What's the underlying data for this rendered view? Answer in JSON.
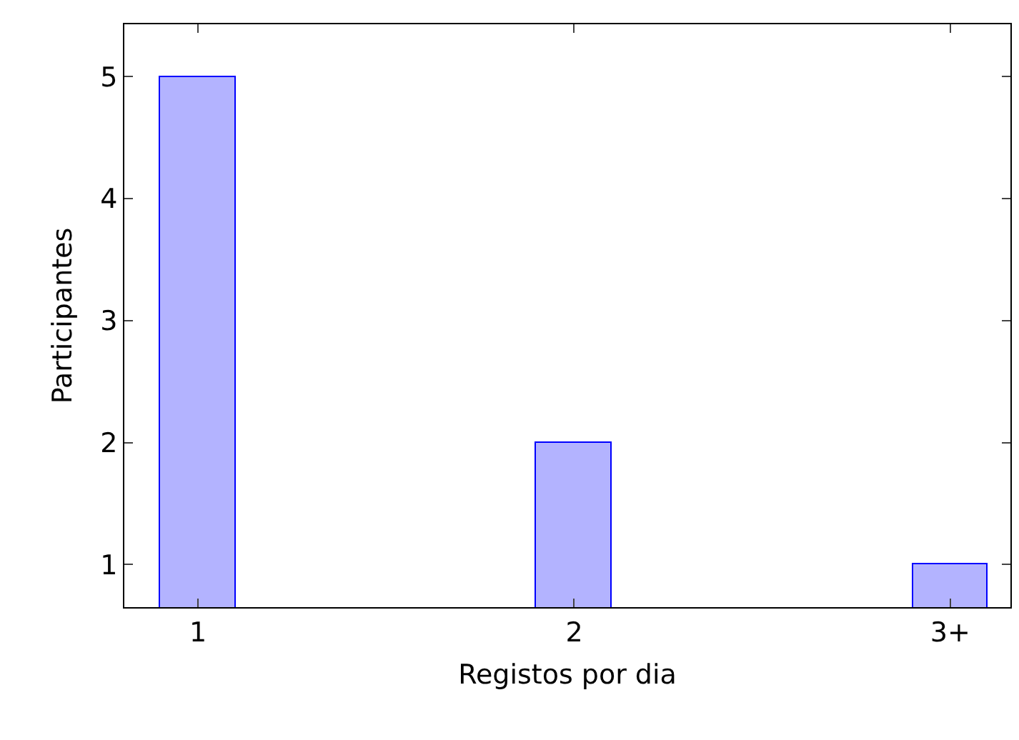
{
  "chart_data": {
    "type": "bar",
    "xlabel": "Registos por dia",
    "ylabel": "Participantes",
    "categories": [
      "1",
      "2",
      "3+"
    ],
    "values": [
      5,
      2,
      1
    ],
    "color": "#b3b3ff",
    "ylim": [
      0.65,
      5.43
    ],
    "yticks": [
      1,
      2,
      3,
      4,
      5
    ],
    "grid": false
  }
}
